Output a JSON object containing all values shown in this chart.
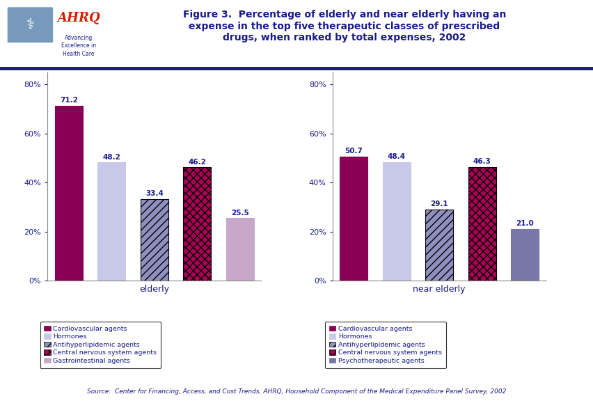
{
  "title_line1": "Figure 3.  Percentage of elderly and near elderly having an",
  "title_line2": "expense in the top five therapeutic classes of prescribed",
  "title_line3": "drugs, when ranked by total expenses, 2002",
  "source": "Source:  Center for Financing, Access, and Cost Trends, AHRQ, Household Component of the Medical Expenditure Panel Survey, 2002",
  "elderly_values": [
    71.2,
    48.2,
    33.4,
    46.2,
    25.5
  ],
  "near_elderly_values": [
    50.7,
    48.4,
    29.1,
    46.3,
    21.0
  ],
  "elderly_labels": [
    "Cardiovascular agents",
    "Hormones",
    "Antihyperlipidemic agents",
    "Central nervous system agents",
    "Gastrointestinal agents"
  ],
  "near_elderly_labels": [
    "Cardiovascular agents",
    "Hormones",
    "Antihyperlipidemic agents",
    "Central nervous system agents",
    "Psychotherapeutic agents"
  ],
  "color_cardiovascular": "#880055",
  "color_hormones": "#c8c8e8",
  "color_antihyper": "#9090c0",
  "color_cns": "#aa0055",
  "color_gastro": "#c8a8c8",
  "color_psycho": "#7777aa",
  "xlabel_elderly": "elderly",
  "xlabel_near_elderly": "near elderly",
  "yticks": [
    0,
    20,
    40,
    60,
    80
  ],
  "background_color": "#ffffff",
  "accent_line_color": "#1a1a8c",
  "text_color": "#1a1a8c",
  "bar_width": 0.65,
  "figsize": [
    8.53,
    5.76
  ],
  "dpi": 100
}
